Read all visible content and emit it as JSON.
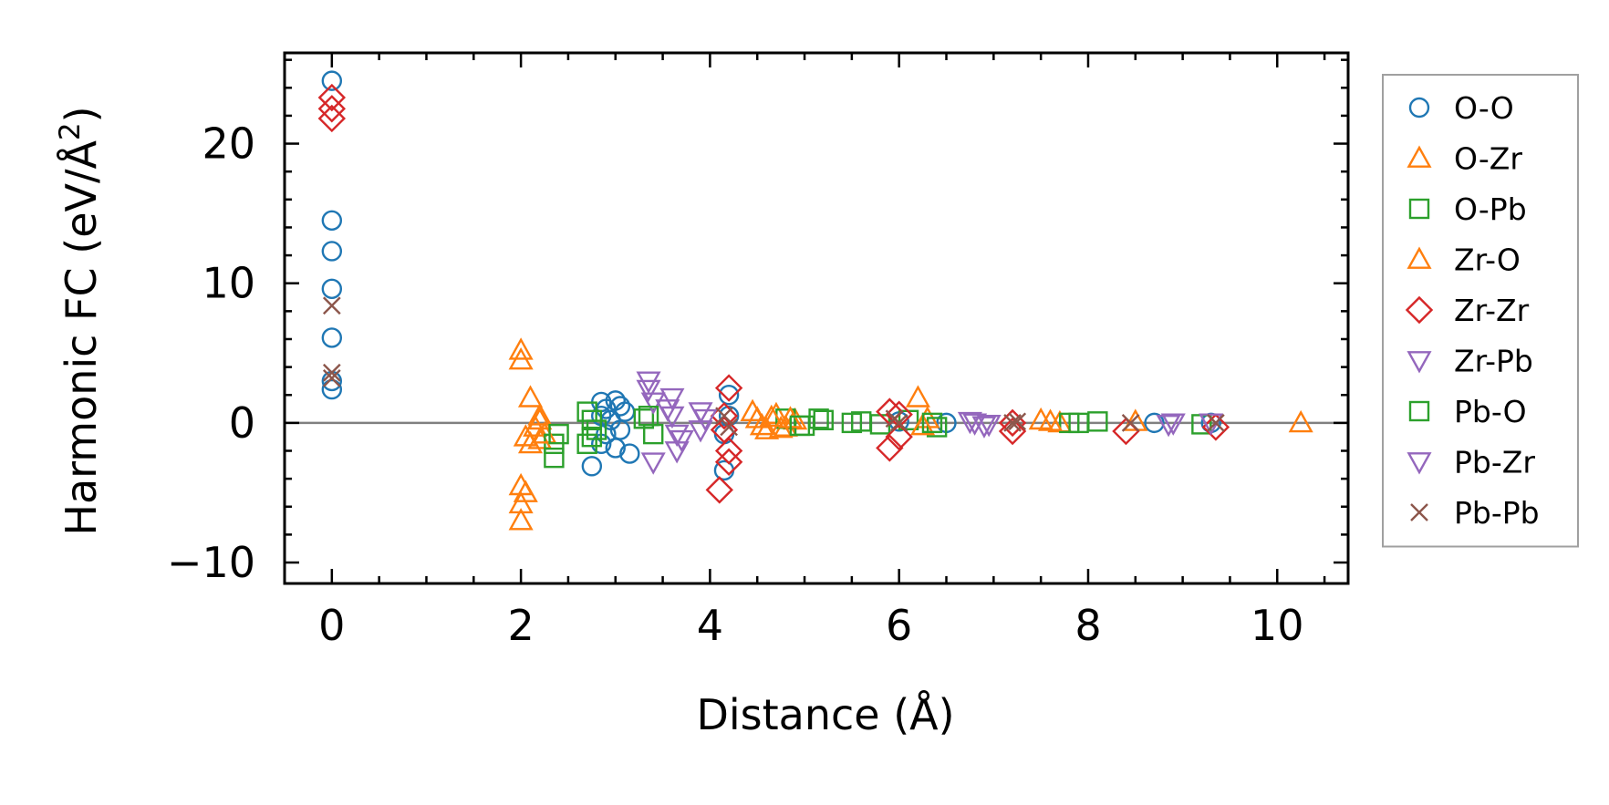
{
  "chart_data": {
    "type": "scatter",
    "title": "",
    "xlabel": "Distance (Å)",
    "ylabel": "Harmonic FC (eV/Å²)",
    "ylabel_main": "Harmonic FC (eV/Å",
    "ylabel_sup": "2",
    "ylabel_end": ")",
    "xlim": [
      -0.5,
      10.75
    ],
    "ylim": [
      -11.5,
      26.5
    ],
    "xticks": [
      0,
      2,
      4,
      6,
      8,
      10
    ],
    "yticks": [
      -10,
      0,
      10,
      20
    ],
    "xtick_labels": [
      "0",
      "2",
      "4",
      "6",
      "8",
      "10"
    ],
    "ytick_labels": [
      "−10",
      "0",
      "10",
      "20"
    ],
    "x_minor_step": 0.5,
    "y_minor_step": 2,
    "zero_line": true,
    "grid": false,
    "legend_position": "outside-right",
    "series": [
      {
        "name": "O-O",
        "marker": "circle",
        "color": "#1f77b4",
        "x": [
          0,
          0,
          0,
          0,
          0,
          0,
          0,
          2.75,
          2.85,
          2.85,
          2.85,
          2.9,
          2.9,
          2.95,
          3.0,
          3.0,
          3.05,
          3.05,
          3.1,
          3.15,
          4.15,
          4.15,
          4.2,
          4.2,
          6.0,
          6.5,
          8.7,
          9.3
        ],
        "y": [
          24.5,
          14.5,
          12.3,
          9.6,
          6.1,
          3.0,
          2.4,
          -3.1,
          1.5,
          0.5,
          -1.5,
          1.0,
          -0.8,
          0.2,
          1.6,
          -1.8,
          1.2,
          -0.5,
          0.8,
          -2.2,
          -3.4,
          -0.8,
          2.0,
          0.5,
          0.1,
          0.0,
          0.0,
          0.0
        ]
      },
      {
        "name": "O-Zr",
        "marker": "triangle-up",
        "color": "#ff7f0e",
        "x": [
          2.0,
          2.0,
          2.0,
          2.0,
          2.0,
          2.05,
          2.05,
          2.1,
          2.1,
          2.15,
          2.2,
          2.2,
          4.45,
          4.5,
          4.6,
          4.7,
          4.8,
          4.9,
          6.2,
          6.3,
          7.5,
          7.7,
          8.5,
          10.25
        ],
        "y": [
          5.2,
          4.5,
          -4.5,
          -5.8,
          -7.0,
          -1.0,
          -5.0,
          1.8,
          -1.5,
          -0.3,
          0.5,
          -1.2,
          0.8,
          0.3,
          -0.5,
          0.6,
          -0.3,
          0.2,
          1.8,
          0.3,
          0.2,
          0.0,
          0.1,
          0.0
        ]
      },
      {
        "name": "O-Pb",
        "marker": "square",
        "color": "#2ca02c",
        "x": [
          2.35,
          2.35,
          2.7,
          2.7,
          2.75,
          2.8,
          3.3,
          3.4,
          4.8,
          5.0,
          5.2,
          5.5,
          5.8,
          6.1,
          6.4,
          7.8,
          8.1,
          9.2
        ],
        "y": [
          -2.5,
          -1.5,
          0.8,
          -1.5,
          0.2,
          -0.5,
          0.3,
          -0.8,
          0.3,
          -0.2,
          0.2,
          0.0,
          -0.1,
          0.2,
          -0.3,
          0.0,
          0.1,
          -0.1
        ]
      },
      {
        "name": "Zr-O",
        "marker": "triangle-up",
        "color": "#ff7f0e",
        "x": [
          2.2,
          2.25,
          4.55,
          4.65,
          4.75,
          4.85,
          6.25,
          7.6
        ],
        "y": [
          0.2,
          -0.8,
          -0.2,
          0.4,
          -0.4,
          0.3,
          -0.2,
          0.1
        ]
      },
      {
        "name": "Zr-Zr",
        "marker": "diamond",
        "color": "#d62728",
        "x": [
          0,
          0,
          0,
          4.1,
          4.15,
          4.15,
          4.2,
          4.2,
          4.2,
          5.9,
          5.9,
          6.0,
          6.0,
          7.2,
          7.2,
          8.4,
          9.35
        ],
        "y": [
          23.3,
          22.5,
          21.8,
          -4.8,
          0.5,
          -0.5,
          2.5,
          -2.0,
          -2.8,
          0.8,
          -1.8,
          0.6,
          -1.0,
          0.0,
          -0.6,
          -0.6,
          -0.3
        ]
      },
      {
        "name": "Zr-Pb",
        "marker": "triangle-down",
        "color": "#9467bd",
        "x": [
          3.35,
          3.35,
          3.4,
          3.4,
          3.6,
          3.6,
          3.65,
          3.65,
          3.9,
          3.9,
          6.8,
          6.9,
          8.9,
          9.3
        ],
        "y": [
          3.0,
          2.4,
          1.5,
          -2.8,
          1.8,
          0.5,
          -0.8,
          -2.0,
          0.8,
          -0.5,
          0.0,
          -0.2,
          0.0,
          0.0
        ]
      },
      {
        "name": "Pb-O",
        "marker": "square",
        "color": "#2ca02c",
        "x": [
          2.4,
          2.75,
          3.35,
          4.95,
          5.15,
          5.6,
          6.35,
          7.9
        ],
        "y": [
          -0.8,
          -1.0,
          0.5,
          -0.2,
          0.3,
          0.1,
          0.0,
          0.0
        ]
      },
      {
        "name": "Pb-Zr",
        "marker": "triangle-down",
        "color": "#9467bd",
        "x": [
          3.55,
          3.7,
          3.95,
          6.75,
          6.95,
          8.85
        ],
        "y": [
          1.0,
          -1.2,
          0.3,
          0.1,
          -0.1,
          -0.1
        ]
      },
      {
        "name": "Pb-Pb",
        "marker": "x",
        "color": "#8c564b",
        "x": [
          0,
          0,
          0,
          4.15,
          4.2,
          5.95,
          6.0,
          7.2,
          7.25,
          8.45,
          9.35
        ],
        "y": [
          8.4,
          3.6,
          3.2,
          0.5,
          -0.3,
          0.3,
          0.0,
          0.0,
          0.1,
          0.0,
          0.0
        ]
      }
    ]
  }
}
